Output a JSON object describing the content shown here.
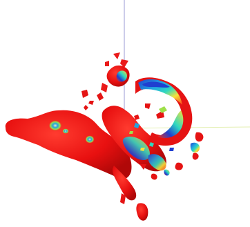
{
  "viewport": {
    "background": "#ffffff"
  },
  "axes": {
    "vertical_color": "#9a9ad6",
    "horizontal_color": "#e3efb1"
  },
  "isosurface": {
    "base_color": "#ee1111",
    "highlight_colors": [
      "#1f3fd0",
      "#22a6e0",
      "#2fd8c0",
      "#9ee04a",
      "#f6e23a",
      "#ff9a26"
    ]
  }
}
